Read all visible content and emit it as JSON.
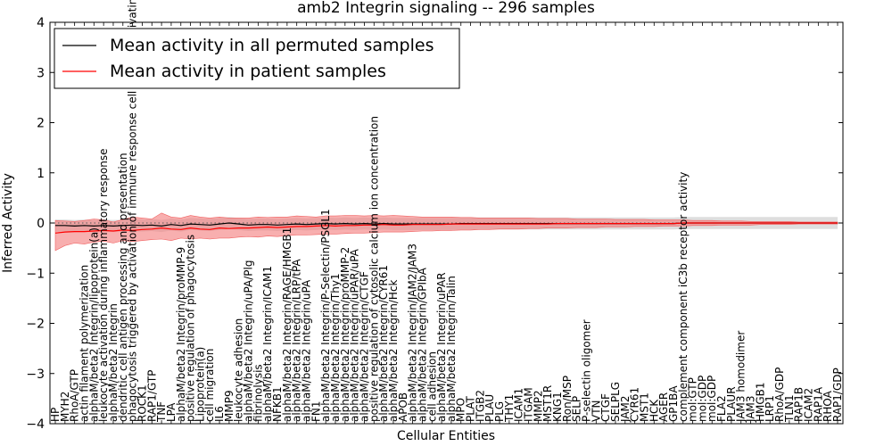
{
  "chart_data": {
    "type": "line",
    "title": "amb2 Integrin signaling -- 296 samples",
    "xlabel": "Cellular Entities",
    "ylabel": "Inferred Activity",
    "ylim": [
      -4,
      4
    ],
    "yticks": [
      "4",
      "3",
      "2",
      "1",
      "0",
      "−1",
      "−2",
      "−3",
      "−4"
    ],
    "grid": false,
    "legend_position": "top-left",
    "categories": [
      "HP",
      "MYH2",
      "RhoA/GTP",
      "actin filament polymerization",
      "alphaM/beta2 Integrin/lipoprotein(a)",
      "leukocyte activation during inflammatory response",
      "alphaM/beta2 Integrin",
      "dendritic cell antigen processing and presentation",
      "phagocytosis triggered by activation of immune response cell surface activating receptor",
      "ROCK1",
      "RAP1/GTP",
      "TNF",
      "LPA",
      "alphaM/beta2 Integrin/proMMP-9",
      "positive regulation of phagocytosis",
      "Lipoprotein(a)",
      "cell migration",
      "IL6",
      "MMP9",
      "leukocyte adhesion",
      "alphaM/beta2 Integrin/uPA/Plg",
      "fibrinolysis",
      "alphaM/beta2 Integrin/ICAM1",
      "NFKB1",
      "alphaM/beta2 Integrin/RAGE/HMGB1",
      "alphaM/beta2 Integrin/LRP/tPA",
      "alphaM/beta2 Integrin/uPA",
      "FN1",
      "alphaM/beta2 Integrin/P-Selectin/PSGL1",
      "alphaM/beta2 Integrin/Thy1",
      "alphaM/beta2 Integrin/proMMP-2",
      "alphaM/beta2 Integrin/uPAR/uPA",
      "alphaM/beta2 Integrin/CTGF",
      "positive regulation of cytosolic calcium ion concentration",
      "alphaM/beta2 Integrin/CYR61",
      "alphaM/beta2 Integrin/Hck",
      "APOB",
      "alphaM/beta2 Integrin/JAM2/JAM3",
      "alphaM/beta2 Integrin/GPIbA",
      "cell adhesion",
      "alphaM/beta2 Integrin/uPAR",
      "alphaM/beta2 Integrin/Talin",
      "MPO",
      "PLAT",
      "ITGB2",
      "PLAU",
      "PLG",
      "THY1",
      "ICAM1",
      "ITGAM",
      "MMP2",
      "MST1R",
      "KNG1",
      "Ron/MSP",
      "SELP",
      "P-selectin oligomer",
      "VTN",
      "CTGF",
      "SELPLG",
      "JAM2",
      "CYR61",
      "MST1",
      "HCK",
      "AGER",
      "GP1BA",
      "complement component iC3b receptor activity",
      "mol:GTP",
      "mol:GDP",
      "mol:GDP",
      "FLA2",
      "PLAUR",
      "JAM3 homodimer",
      "JAM3",
      "HMGB1",
      "LRP1",
      "RhoA/GDP",
      "TLN1",
      "RAP1B",
      "ICAM2",
      "RAP1A",
      "RHOA",
      "RAP1/GDP"
    ],
    "series": [
      {
        "name": "Mean activity in all permuted samples",
        "color": "#000000",
        "values": [
          -0.05,
          -0.05,
          -0.06,
          -0.05,
          -0.06,
          -0.05,
          -0.06,
          -0.05,
          -0.04,
          -0.05,
          -0.04,
          -0.06,
          -0.03,
          -0.05,
          -0.02,
          -0.03,
          -0.04,
          -0.02,
          0,
          -0.02,
          -0.04,
          -0.03,
          -0.03,
          -0.04,
          -0.03,
          -0.02,
          -0.03,
          -0.02,
          -0.01,
          -0.02,
          -0.01,
          -0.02,
          -0.01,
          -0.02,
          -0.01,
          -0.02,
          -0.02,
          -0.02,
          -0.02,
          -0.02,
          -0.02,
          -0.02,
          -0.01,
          -0.01,
          -0.01,
          -0.01,
          -0.01,
          -0.01,
          -0.01,
          -0.01,
          -0.01,
          -0.01,
          -0.01,
          -0.01,
          -0.01,
          -0.01,
          -0.01,
          -0.01,
          -0.01,
          -0.01,
          -0.01,
          -0.01,
          -0.01,
          -0.01,
          -0.01,
          0,
          0,
          0,
          0,
          0,
          0,
          0,
          0,
          0,
          0,
          0,
          0,
          0,
          0,
          0,
          0,
          0
        ],
        "band": 0.12
      },
      {
        "name": "Mean activity in patient samples",
        "color": "#ff0000",
        "values": [
          -0.2,
          -0.18,
          -0.17,
          -0.17,
          -0.16,
          -0.15,
          -0.16,
          -0.14,
          -0.15,
          -0.13,
          -0.12,
          -0.1,
          -0.12,
          -0.13,
          -0.1,
          -0.12,
          -0.13,
          -0.1,
          -0.11,
          -0.1,
          -0.1,
          -0.09,
          -0.08,
          -0.09,
          -0.08,
          -0.07,
          -0.07,
          -0.06,
          -0.05,
          -0.06,
          -0.05,
          -0.05,
          -0.04,
          -0.04,
          -0.03,
          -0.04,
          -0.04,
          -0.03,
          -0.03,
          -0.03,
          -0.03,
          -0.02,
          -0.02,
          -0.02,
          -0.02,
          -0.02,
          -0.02,
          -0.02,
          -0.02,
          -0.02,
          -0.02,
          -0.02,
          -0.01,
          -0.01,
          -0.01,
          -0.01,
          -0.01,
          -0.01,
          -0.01,
          -0.01,
          -0.01,
          -0.01,
          -0.01,
          -0.01,
          -0.01,
          0,
          0,
          0,
          0,
          0,
          0,
          0,
          0,
          0,
          0,
          0,
          0,
          0,
          0,
          0,
          0,
          0
        ],
        "band_upper": [
          0.05,
          0.04,
          0.03,
          0.05,
          0.08,
          0.06,
          0.02,
          0.07,
          0.12,
          0.1,
          0.08,
          0.2,
          0.12,
          0.1,
          0.15,
          0.12,
          0.1,
          0.12,
          0.1,
          0.1,
          0.1,
          0.12,
          0.11,
          0.12,
          0.12,
          0.14,
          0.13,
          0.12,
          0.14,
          0.14,
          0.15,
          0.15,
          0.14,
          0.15,
          0.14,
          0.15,
          0.14,
          0.13,
          0.12,
          0.12,
          0.12,
          0.12,
          0.11,
          0.11,
          0.1,
          0.1,
          0.1,
          0.1,
          0.1,
          0.1,
          0.09,
          0.09,
          0.09,
          0.09,
          0.08,
          0.08,
          0.08,
          0.08,
          0.07,
          0.07,
          0.07,
          0.07,
          0.06,
          0.06,
          0.06,
          0.06,
          0.05,
          0.05,
          0.05,
          0.04,
          0.04,
          0.04,
          0.03,
          0.03,
          0.03,
          0.03,
          0.03,
          0.02,
          0.02,
          0.02,
          0.02,
          0.02
        ],
        "band_lower": [
          -0.55,
          -0.45,
          -0.4,
          -0.42,
          -0.38,
          -0.36,
          -0.4,
          -0.35,
          -0.37,
          -0.35,
          -0.33,
          -0.32,
          -0.35,
          -0.3,
          -0.32,
          -0.3,
          -0.32,
          -0.3,
          -0.3,
          -0.28,
          -0.27,
          -0.28,
          -0.26,
          -0.27,
          -0.25,
          -0.24,
          -0.24,
          -0.23,
          -0.22,
          -0.22,
          -0.21,
          -0.2,
          -0.2,
          -0.19,
          -0.18,
          -0.18,
          -0.18,
          -0.17,
          -0.16,
          -0.16,
          -0.15,
          -0.15,
          -0.14,
          -0.14,
          -0.13,
          -0.13,
          -0.12,
          -0.12,
          -0.12,
          -0.11,
          -0.11,
          -0.1,
          -0.1,
          -0.1,
          -0.09,
          -0.09,
          -0.09,
          -0.08,
          -0.08,
          -0.08,
          -0.07,
          -0.07,
          -0.07,
          -0.06,
          -0.06,
          -0.06,
          -0.05,
          -0.05,
          -0.05,
          -0.04,
          -0.04,
          -0.04,
          -0.04,
          -0.03,
          -0.03,
          -0.03,
          -0.03,
          -0.02,
          -0.02,
          -0.02,
          -0.02,
          -0.02
        ]
      }
    ],
    "reference_line": 0
  }
}
